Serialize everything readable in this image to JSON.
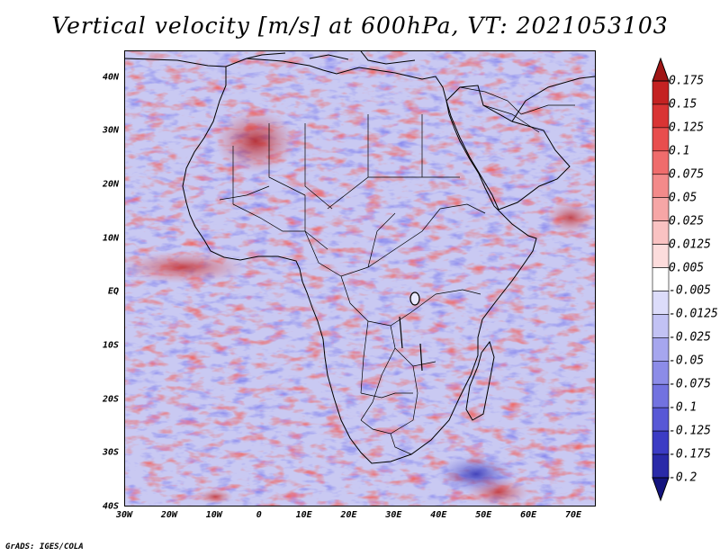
{
  "title": "Vertical velocity [m/s] at 600hPa, VT: 2021053103",
  "footer": "GrADS: IGES/COLA",
  "map": {
    "variable": "Vertical velocity",
    "units": "m/s",
    "level": "600hPa",
    "valid_time": "2021053103",
    "lon_range": [
      -30,
      75
    ],
    "lat_range": [
      -40,
      45
    ],
    "lat_ticks": [
      {
        "value": 40,
        "label": "40N"
      },
      {
        "value": 30,
        "label": "30N"
      },
      {
        "value": 20,
        "label": "20N"
      },
      {
        "value": 10,
        "label": "10N"
      },
      {
        "value": 0,
        "label": "EQ"
      },
      {
        "value": -10,
        "label": "10S"
      },
      {
        "value": -20,
        "label": "20S"
      },
      {
        "value": -30,
        "label": "30S"
      },
      {
        "value": -40,
        "label": "40S"
      }
    ],
    "lon_ticks": [
      {
        "value": -30,
        "label": "30W"
      },
      {
        "value": -20,
        "label": "20W"
      },
      {
        "value": -10,
        "label": "10W"
      },
      {
        "value": 0,
        "label": "0"
      },
      {
        "value": 10,
        "label": "10E"
      },
      {
        "value": 20,
        "label": "20E"
      },
      {
        "value": 30,
        "label": "30E"
      },
      {
        "value": 40,
        "label": "40E"
      },
      {
        "value": 50,
        "label": "50E"
      },
      {
        "value": 60,
        "label": "60E"
      },
      {
        "value": 70,
        "label": "70E"
      }
    ]
  },
  "colorbar": {
    "labels": [
      "0.175",
      "0.15",
      "0.125",
      "0.1",
      "0.075",
      "0.05",
      "0.025",
      "0.0125",
      "0.005",
      "-0.005",
      "-0.0125",
      "-0.025",
      "-0.05",
      "-0.075",
      "-0.1",
      "-0.125",
      "-0.175",
      "-0.2"
    ],
    "colors": [
      "#a01616",
      "#c42222",
      "#d93434",
      "#e84e4e",
      "#ef6c6c",
      "#f38a8a",
      "#f6a6a6",
      "#f9c2c2",
      "#fcdcdc",
      "#ffffff",
      "#dcdcfa",
      "#c2c2f4",
      "#a6a6ee",
      "#8c8ce8",
      "#7272e0",
      "#5858d6",
      "#3c3cc4",
      "#2a2aa8",
      "#14147e"
    ]
  }
}
